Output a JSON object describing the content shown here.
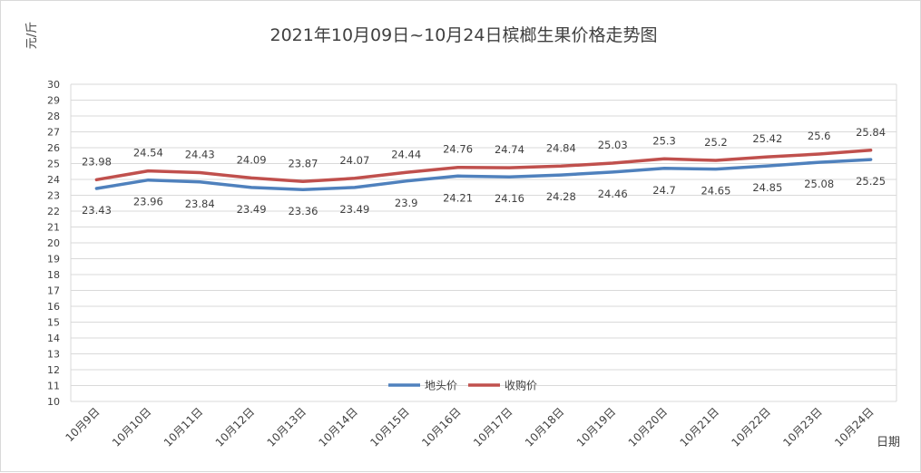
{
  "chart_data": {
    "type": "line",
    "title": "2021年10月09日~10月24日槟榔生果价格走势图",
    "ylabel": "元/斤",
    "xlabel": "日期",
    "categories": [
      "10月9日",
      "10月10日",
      "10月11日",
      "10月12日",
      "10月13日",
      "10月14日",
      "10月15日",
      "10月16日",
      "10月17日",
      "10月18日",
      "10月19日",
      "10月20日",
      "10月21日",
      "10月22日",
      "10月23日",
      "10月24日"
    ],
    "ylim": [
      10,
      30
    ],
    "ytick_step": 1,
    "grid": true,
    "legend_position": "bottom-center",
    "series": [
      {
        "name": "地头价",
        "color": "#4F81BD",
        "label_position": "below",
        "values": [
          23.43,
          23.96,
          23.84,
          23.49,
          23.36,
          23.49,
          23.9,
          24.21,
          24.16,
          24.28,
          24.46,
          24.7,
          24.65,
          24.85,
          25.08,
          25.25
        ]
      },
      {
        "name": "收购价",
        "color": "#C0504D",
        "label_position": "above",
        "values": [
          23.98,
          24.54,
          24.43,
          24.09,
          23.87,
          24.07,
          24.44,
          24.76,
          24.74,
          24.84,
          25.03,
          25.3,
          25.2,
          25.42,
          25.6,
          25.84
        ]
      }
    ]
  }
}
